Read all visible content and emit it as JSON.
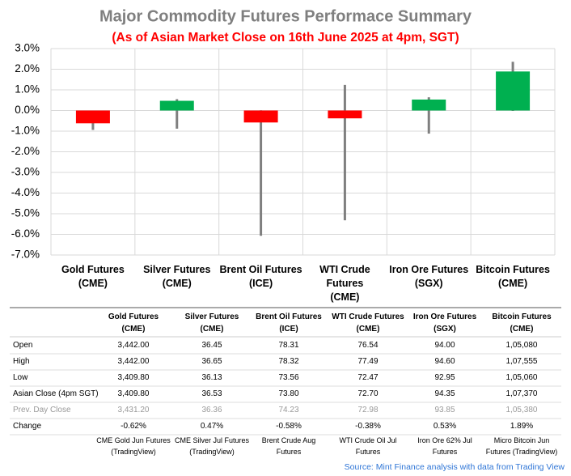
{
  "chart_data": {
    "type": "candlestick",
    "title": "Major Commodity Futures Performace Summary",
    "subtitle": "(As of Asian Market Close on 16th June 2025 at 4pm, SGT)",
    "categories": [
      "Gold Futures\n(CME)",
      "Silver Futures\n(CME)",
      "Brent Oil Futures\n(ICE)",
      "WTI Crude\nFutures\n(CME)",
      "Iron Ore Futures\n(SGX)",
      "Bitcoin Futures\n(CME)"
    ],
    "values": [
      -0.62,
      0.47,
      -0.58,
      -0.38,
      0.53,
      1.89
    ],
    "high": [
      0,
      0.55,
      0.01,
      1.24,
      0.64,
      2.36
    ],
    "low": [
      -0.94,
      -0.88,
      -6.07,
      -5.32,
      -1.12,
      -0.02
    ],
    "up_color": "#00b050",
    "down_color": "#ff0000",
    "wick_color": "#7f7f7f",
    "ylim": [
      -7,
      3
    ],
    "yticks": [
      {
        "value": -7,
        "label": "-7.0%"
      },
      {
        "value": -6,
        "label": "-6.0%"
      },
      {
        "value": -5,
        "label": "-5.0%"
      },
      {
        "value": -4,
        "label": "-4.0%"
      },
      {
        "value": -3,
        "label": "-3.0%"
      },
      {
        "value": -2,
        "label": "-2.0%"
      },
      {
        "value": -1,
        "label": "-1.0%"
      },
      {
        "value": 0,
        "label": "0.0%"
      },
      {
        "value": 1,
        "label": "1.0%"
      },
      {
        "value": 2,
        "label": "2.0%"
      },
      {
        "value": 3,
        "label": "3.0%"
      }
    ],
    "grid": true
  },
  "table": {
    "columns": [
      "Gold Futures\n(CME)",
      "Silver Futures\n(CME)",
      "Brent Oil Futures\n(ICE)",
      "WTI Crude Futures\n(CME)",
      "Iron Ore Futures\n(SGX)",
      "Bitcoin Futures\n(CME)"
    ],
    "rows": [
      {
        "label": "Open",
        "cells": [
          "3,442.00",
          "36.45",
          "78.31",
          "76.54",
          "94.00",
          "1,05,080"
        ]
      },
      {
        "label": "High",
        "cells": [
          "3,442.00",
          "36.65",
          "78.32",
          "77.49",
          "94.60",
          "1,07,555"
        ]
      },
      {
        "label": "Low",
        "cells": [
          "3,409.80",
          "36.13",
          "73.56",
          "72.47",
          "92.95",
          "1,05,060"
        ]
      },
      {
        "label": "Asian Close (4pm SGT)",
        "cells": [
          "3,409.80",
          "36.53",
          "73.80",
          "72.70",
          "94.35",
          "1,07,370"
        ]
      },
      {
        "label": "Prev. Day Close",
        "cells": [
          "3,431.20",
          "36.36",
          "74.23",
          "72.98",
          "93.85",
          "1,05,380"
        ]
      },
      {
        "label": "Change",
        "cells": [
          "-0.62%",
          "0.47%",
          "-0.58%",
          "-0.38%",
          "0.53%",
          "1.89%"
        ]
      }
    ],
    "notes": [
      "CME Gold Jun Futures\n(TradingView)",
      "CME Silver Jul Futures\n(TradingView)",
      "Brent Crude Aug\nFutures",
      "WTI Crude Oil Jul\nFutures",
      "Iron Ore 62% Jul\nFutures",
      "Micro Bitcoin Jun\nFutures (TradingView)"
    ],
    "source": "Source: Mint Finance analysis with data from Trading View"
  }
}
